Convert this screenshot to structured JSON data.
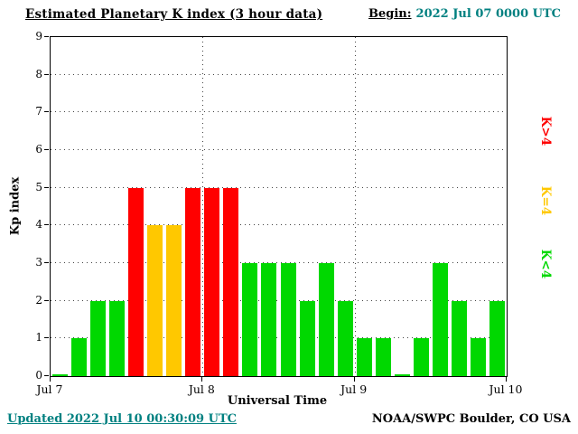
{
  "header": {
    "title": "Estimated Planetary K index (3 hour data)",
    "begin_label": "Begin:",
    "begin_value": "2022 Jul 07 0000 UTC"
  },
  "footer": {
    "updated": "Updated 2022 Jul 10 00:30:09 UTC",
    "credit": "NOAA/SWPC Boulder, CO USA"
  },
  "colors": {
    "accent_teal": "#008080",
    "background": "#ffffff",
    "text": "#000000"
  },
  "legend": [
    {
      "label": "K>4",
      "color": "#ff0000"
    },
    {
      "label": "K=4",
      "color": "#ffc800"
    },
    {
      "label": "K<4",
      "color": "#00d800"
    }
  ],
  "chart_data": {
    "type": "bar",
    "title": "Estimated Planetary K index (3 hour data)",
    "xlabel": "Universal Time",
    "ylabel": "Kp index",
    "ylim": [
      0,
      9
    ],
    "y_ticks": [
      0,
      1,
      2,
      3,
      4,
      5,
      6,
      7,
      8,
      9
    ],
    "x_ticks": [
      "Jul 7",
      "Jul 8",
      "Jul 9",
      "Jul 10"
    ],
    "hours_per_bar": 3,
    "values": [
      0,
      1,
      2,
      2,
      5,
      4,
      4,
      5,
      5,
      5,
      3,
      3,
      3,
      2,
      3,
      2,
      1,
      1,
      0,
      1,
      3,
      2,
      1,
      2
    ],
    "colors": {
      "low": "#00d800",
      "mid": "#ffc800",
      "high": "#ff0000"
    },
    "color_rule": "green if K<4, yellow if K=4, red if K>4",
    "grid": "dotted",
    "legend_position": "right"
  }
}
